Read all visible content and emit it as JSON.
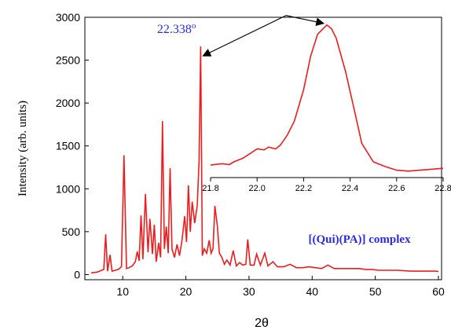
{
  "chart_data": [
    {
      "type": "line",
      "title": "",
      "xlabel": "2θ",
      "ylabel": "Intensity (arb. units)",
      "xlim": [
        4,
        60.5
      ],
      "ylim": [
        -60,
        3000
      ],
      "x_ticks": [
        10,
        20,
        30,
        40,
        50,
        60
      ],
      "y_ticks": [
        0,
        500,
        1000,
        1500,
        2000,
        2500,
        3000
      ],
      "grid": false,
      "annotations": {
        "peak_label": "22.338",
        "peak_label_superscript": "o",
        "peak_label_position": [
          22.338,
          2650
        ],
        "sample_label": "[(Qui)(PA)] complex",
        "sample_label_position": [
          47.5,
          370
        ]
      },
      "series": [
        {
          "color": "#ee1c1c",
          "x": [
            5,
            6,
            7,
            7.3,
            7.6,
            8,
            8.3,
            8.8,
            9.3,
            9.8,
            10.2,
            10.6,
            11,
            11.5,
            12,
            12.3,
            12.6,
            12.9,
            13.2,
            13.6,
            14,
            14.3,
            14.7,
            15,
            15.3,
            15.7,
            16,
            16.3,
            16.6,
            16.9,
            17.2,
            17.5,
            17.8,
            18.2,
            18.6,
            19,
            19.4,
            19.8,
            20.1,
            20.4,
            20.7,
            21,
            21.4,
            21.8,
            22.1,
            22.338,
            22.6,
            22.9,
            23.3,
            23.7,
            24,
            24.3,
            24.6,
            25,
            25.3,
            25.7,
            26.1,
            26.5,
            27,
            27.5,
            28,
            28.5,
            29,
            29.5,
            29.8,
            30.2,
            30.8,
            31.2,
            31.8,
            32.5,
            33,
            33.8,
            34.5,
            35.5,
            36.5,
            37.5,
            38.5,
            39.5,
            40.5,
            41.5,
            42,
            42.5,
            43.5,
            44.5,
            45.5,
            46.5,
            47.5,
            48.5,
            49.5,
            50.5,
            51.5,
            52.5,
            53.5,
            54.5,
            55.5,
            56.5,
            57.5,
            58.5,
            59.5,
            60
          ],
          "y": [
            20,
            30,
            60,
            470,
            40,
            230,
            40,
            50,
            60,
            90,
            1390,
            70,
            80,
            100,
            150,
            270,
            160,
            690,
            180,
            940,
            260,
            650,
            240,
            580,
            150,
            370,
            200,
            1790,
            300,
            560,
            250,
            1240,
            300,
            200,
            350,
            220,
            400,
            680,
            380,
            1040,
            500,
            850,
            600,
            800,
            1330,
            2660,
            220,
            300,
            250,
            400,
            250,
            300,
            800,
            560,
            250,
            200,
            120,
            170,
            110,
            280,
            100,
            140,
            110,
            120,
            410,
            110,
            110,
            240,
            110,
            250,
            100,
            150,
            90,
            90,
            120,
            80,
            80,
            90,
            80,
            70,
            90,
            110,
            70,
            70,
            70,
            70,
            70,
            60,
            60,
            50,
            50,
            50,
            50,
            45,
            40,
            40,
            40,
            40,
            40,
            35
          ]
        }
      ]
    },
    {
      "type": "line",
      "title": "",
      "xlabel": "",
      "ylabel": "",
      "xlim": [
        21.8,
        22.8
      ],
      "ylim": [
        1250,
        3000
      ],
      "x_ticks": [
        21.8,
        22.0,
        22.2,
        22.4,
        22.6,
        22.8
      ],
      "x_tick_labels": [
        "21.8",
        "22.0",
        "22.2",
        "22.4",
        "22.6",
        "22.8"
      ],
      "grid": false,
      "series": [
        {
          "color": "#ee1c1c",
          "x": [
            21.8,
            21.85,
            21.88,
            21.9,
            21.94,
            21.97,
            22.0,
            22.03,
            22.05,
            22.08,
            22.1,
            22.13,
            22.16,
            22.2,
            22.23,
            22.26,
            22.3,
            22.32,
            22.34,
            22.38,
            22.42,
            22.45,
            22.5,
            22.55,
            22.6,
            22.65,
            22.7,
            22.75,
            22.8
          ],
          "y": [
            1385,
            1400,
            1390,
            1420,
            1460,
            1510,
            1560,
            1550,
            1580,
            1560,
            1600,
            1710,
            1860,
            2200,
            2560,
            2800,
            2900,
            2860,
            2760,
            2400,
            1960,
            1620,
            1420,
            1370,
            1330,
            1320,
            1330,
            1340,
            1350
          ]
        }
      ]
    }
  ]
}
